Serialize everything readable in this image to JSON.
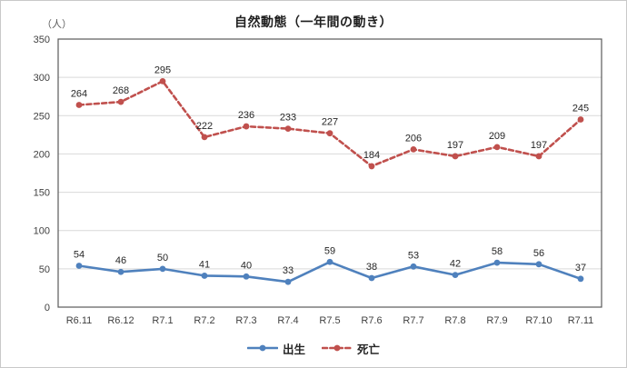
{
  "chart_data": {
    "type": "line",
    "title": "自然動態（一年間の動き）",
    "unit_label": "（人）",
    "categories": [
      "R6.11",
      "R6.12",
      "R7.1",
      "R7.2",
      "R7.3",
      "R7.4",
      "R7.5",
      "R7.6",
      "R7.7",
      "R7.8",
      "R7.9",
      "R7.10",
      "R7.11"
    ],
    "series": [
      {
        "id": "births",
        "name": "出生",
        "color": "#4F81BD",
        "line_style": "solid",
        "marker": "circle",
        "values": [
          54,
          46,
          50,
          41,
          40,
          33,
          59,
          38,
          53,
          42,
          58,
          56,
          37
        ]
      },
      {
        "id": "deaths",
        "name": "死亡",
        "color": "#C0504D",
        "line_style": "dashed",
        "marker": "circle",
        "values": [
          264,
          268,
          295,
          222,
          236,
          233,
          227,
          184,
          206,
          197,
          209,
          197,
          245
        ]
      }
    ],
    "xlabel": "",
    "ylabel": "（人）",
    "ylim": [
      0,
      350
    ],
    "ytick_step": 50,
    "ytick_labels": [
      "0",
      "50",
      "100",
      "150",
      "200",
      "250",
      "300",
      "350"
    ],
    "grid": true,
    "data_labels": true,
    "legend_position": "bottom",
    "colors": {
      "gridline": "#D9D9D9",
      "plot_border": "#595959",
      "tick_text": "#404040",
      "data_label_text": "#262626",
      "background": "#FFFFFF"
    }
  }
}
